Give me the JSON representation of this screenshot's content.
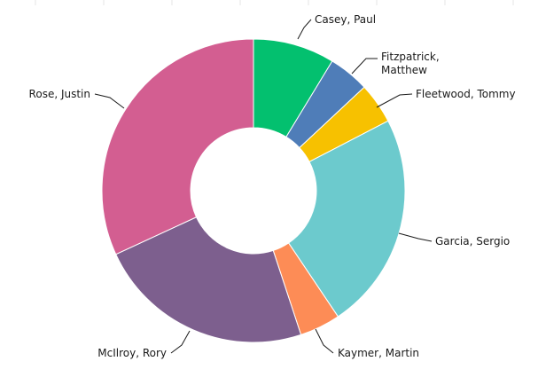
{
  "chart_data": {
    "type": "pie",
    "style": "donut",
    "title": "",
    "grid": false,
    "legend": "none",
    "slices": [
      {
        "label": "Casey, Paul",
        "value": 3,
        "color": "#03c06f"
      },
      {
        "label": "Fitzpatrick, Matthew",
        "value": 1.5,
        "color": "#4f7db8"
      },
      {
        "label": "Fleetwood, Tommy",
        "value": 1.5,
        "color": "#f7c100"
      },
      {
        "label": "Garcia, Sergio",
        "value": 8,
        "color": "#6ccacd"
      },
      {
        "label": "Kaymer, Martin",
        "value": 1.5,
        "color": "#fd8c56"
      },
      {
        "label": "McIlroy, Rory",
        "value": 8,
        "color": "#7d5f8e"
      },
      {
        "label": "Rose, Justin",
        "value": 11,
        "color": "#d35e91"
      }
    ]
  }
}
